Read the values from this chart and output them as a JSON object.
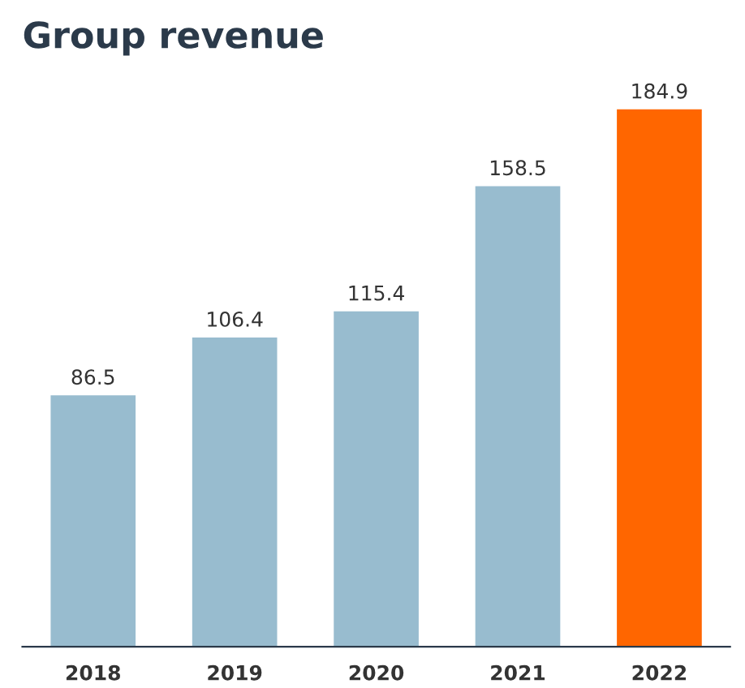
{
  "chart_data": {
    "type": "bar",
    "title": "Group revenue",
    "categories": [
      "2018",
      "2019",
      "2020",
      "2021",
      "2022"
    ],
    "values": [
      86.5,
      106.4,
      115.4,
      158.5,
      184.9
    ],
    "colors": [
      "#98bccf",
      "#98bccf",
      "#98bccf",
      "#98bccf",
      "#ff6600"
    ],
    "data_labels": true,
    "grid": false,
    "legend": false
  }
}
